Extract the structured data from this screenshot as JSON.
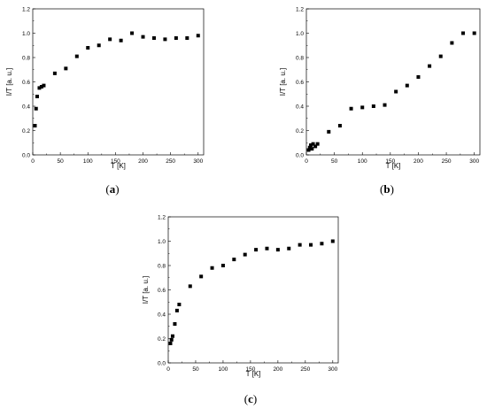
{
  "chart_data": [
    {
      "type": "scatter",
      "caption_open": "(",
      "caption_letter": "a",
      "caption_close": ")",
      "xlabel": "T [K]",
      "ylabel": "I/T [a. u.]",
      "xlim": [
        0,
        310
      ],
      "ylim": [
        0,
        1.2
      ],
      "xticks": [
        "0",
        "50",
        "100",
        "150",
        "200",
        "250",
        "300"
      ],
      "yticks": [
        "0.0",
        "0.2",
        "0.4",
        "0.6",
        "0.8",
        "1.0",
        "1.2"
      ],
      "x": [
        4,
        6,
        8,
        12,
        16,
        20,
        40,
        60,
        80,
        100,
        120,
        140,
        160,
        180,
        200,
        220,
        240,
        260,
        280,
        300
      ],
      "y": [
        0.24,
        0.38,
        0.48,
        0.55,
        0.56,
        0.57,
        0.67,
        0.71,
        0.81,
        0.88,
        0.9,
        0.95,
        0.94,
        1.0,
        0.97,
        0.96,
        0.95,
        0.96,
        0.96,
        0.98
      ]
    },
    {
      "type": "scatter",
      "caption_open": "(",
      "caption_letter": "b",
      "caption_close": ")",
      "xlabel": "T [K]",
      "ylabel": "I/T [a. u.]",
      "xlim": [
        0,
        310
      ],
      "ylim": [
        0,
        1.2
      ],
      "xticks": [
        "0",
        "50",
        "100",
        "150",
        "200",
        "250",
        "300"
      ],
      "yticks": [
        "0.0",
        "0.2",
        "0.4",
        "0.6",
        "0.8",
        "1.0",
        "1.2"
      ],
      "x": [
        4,
        6,
        8,
        10,
        12,
        16,
        20,
        40,
        60,
        80,
        100,
        120,
        140,
        160,
        180,
        200,
        220,
        240,
        260,
        280,
        300
      ],
      "y": [
        0.04,
        0.06,
        0.08,
        0.05,
        0.09,
        0.07,
        0.09,
        0.19,
        0.24,
        0.38,
        0.39,
        0.4,
        0.41,
        0.52,
        0.57,
        0.64,
        0.73,
        0.81,
        0.92,
        1.0,
        1.0
      ]
    },
    {
      "type": "scatter",
      "caption_open": "(",
      "caption_letter": "c",
      "caption_close": ")",
      "xlabel": "T [K]",
      "ylabel": "I/T [a. u.]",
      "xlim": [
        0,
        310
      ],
      "ylim": [
        0,
        1.2
      ],
      "xticks": [
        "0",
        "50",
        "100",
        "150",
        "200",
        "250",
        "300"
      ],
      "yticks": [
        "0.0",
        "0.2",
        "0.4",
        "0.6",
        "0.8",
        "1.0",
        "1.2"
      ],
      "x": [
        4,
        6,
        8,
        12,
        16,
        20,
        40,
        60,
        80,
        100,
        120,
        140,
        160,
        180,
        200,
        220,
        240,
        260,
        280,
        300
      ],
      "y": [
        0.16,
        0.19,
        0.22,
        0.32,
        0.43,
        0.48,
        0.63,
        0.71,
        0.78,
        0.8,
        0.85,
        0.89,
        0.93,
        0.94,
        0.93,
        0.94,
        0.97,
        0.97,
        0.98,
        1.0
      ]
    }
  ]
}
